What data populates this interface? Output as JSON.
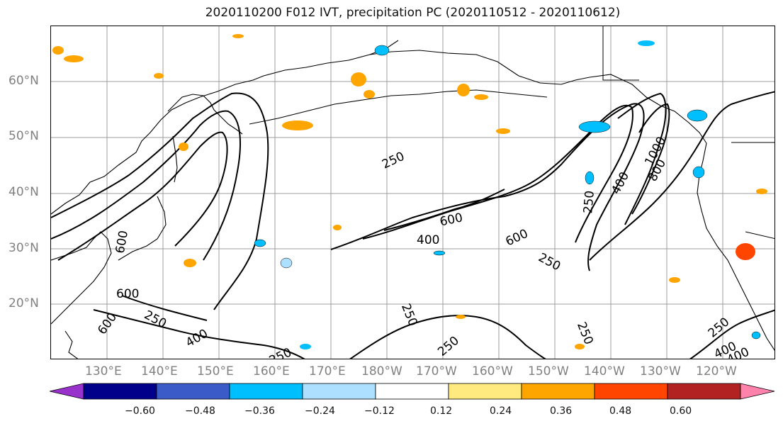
{
  "title": "2020110200 F012 IVT, precipitation PC (2020110512 - 2020110612)",
  "lat_labels": [
    "60°N",
    "50°N",
    "40°N",
    "30°N",
    "20°N"
  ],
  "lon_labels": [
    "130°E",
    "140°E",
    "150°E",
    "160°E",
    "170°E",
    "180°W",
    "170°W",
    "160°W",
    "150°W",
    "140°W",
    "130°W",
    "120°W"
  ],
  "colorbar": {
    "colors": [
      "#9932CC",
      "#00008B",
      "#3A5BC8",
      "#00BFFF",
      "#ADDFFF",
      "#FFFFFF",
      "#FFEA80",
      "#FFA500",
      "#FF4500",
      "#B22222",
      "#FF82AB"
    ],
    "tick_labels": [
      "−0.60",
      "−0.48",
      "−0.36",
      "−0.24",
      "−0.12",
      "0.12",
      "0.24",
      "0.36",
      "0.48",
      "0.60"
    ]
  },
  "contour_labels": [
    "250",
    "400",
    "600",
    "600",
    "400",
    "600",
    "250",
    "250",
    "400",
    "800",
    "1000",
    "600",
    "600",
    "250",
    "400",
    "250",
    "250",
    "250",
    "250",
    "250",
    "400"
  ]
}
